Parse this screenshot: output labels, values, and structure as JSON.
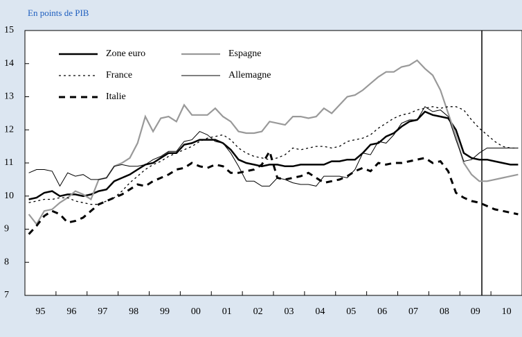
{
  "chart_data": {
    "type": "line",
    "subtitle": "En points de PIB",
    "categories": [
      "95",
      null,
      null,
      null,
      "96",
      null,
      null,
      null,
      "97",
      null,
      null,
      null,
      "98",
      null,
      null,
      null,
      "99",
      null,
      null,
      null,
      "00",
      null,
      null,
      null,
      "01",
      null,
      null,
      null,
      "02",
      null,
      null,
      null,
      "03",
      null,
      null,
      null,
      "04",
      null,
      null,
      null,
      "05",
      null,
      null,
      null,
      "06",
      null,
      null,
      null,
      "07",
      null,
      null,
      null,
      "08",
      null,
      null,
      null,
      "09",
      null,
      null,
      null,
      "10",
      null,
      null,
      null
    ],
    "series": [
      {
        "name": "Zone euro",
        "color": "#000000",
        "style": "solid",
        "width": 2.5,
        "values": [
          9.9,
          9.95,
          10.1,
          10.15,
          10.0,
          10.05,
          10.05,
          10.0,
          10.05,
          10.15,
          10.2,
          10.45,
          10.55,
          10.65,
          10.8,
          10.95,
          11.0,
          11.15,
          11.3,
          11.3,
          11.55,
          11.6,
          11.7,
          11.7,
          11.7,
          11.6,
          11.4,
          11.1,
          11.0,
          10.95,
          10.9,
          10.95,
          10.95,
          10.9,
          10.9,
          10.95,
          10.95,
          10.95,
          10.95,
          11.05,
          11.05,
          11.1,
          11.1,
          11.3,
          11.55,
          11.6,
          11.8,
          11.9,
          12.1,
          12.25,
          12.3,
          12.55,
          12.45,
          12.4,
          12.35,
          12.0,
          11.3,
          11.15,
          11.1,
          11.1,
          11.05,
          11.0,
          10.95,
          10.95
        ]
      },
      {
        "name": "Espagne",
        "color": "#999999",
        "style": "solid",
        "width": 2.2,
        "values": [
          9.45,
          9.15,
          9.55,
          9.6,
          9.8,
          9.95,
          10.15,
          10.05,
          9.9,
          10.5,
          10.55,
          10.9,
          11.0,
          11.15,
          11.6,
          12.4,
          11.95,
          12.35,
          12.4,
          12.25,
          12.75,
          12.45,
          12.45,
          12.45,
          12.65,
          12.4,
          12.25,
          11.95,
          11.9,
          11.9,
          11.95,
          12.25,
          12.2,
          12.15,
          12.4,
          12.4,
          12.35,
          12.4,
          12.65,
          12.5,
          12.75,
          13.0,
          13.05,
          13.2,
          13.4,
          13.6,
          13.75,
          13.75,
          13.9,
          13.95,
          14.1,
          13.85,
          13.65,
          13.2,
          12.5,
          11.8,
          11.0,
          10.65,
          10.45,
          10.45,
          10.5,
          10.55,
          10.6,
          10.65
        ]
      },
      {
        "name": "France",
        "color": "#000000",
        "style": "dotted",
        "width": 1.3,
        "values": [
          9.8,
          9.85,
          9.9,
          9.9,
          9.95,
          9.95,
          9.85,
          9.8,
          9.75,
          9.75,
          9.85,
          9.95,
          10.15,
          10.4,
          10.6,
          10.8,
          10.95,
          11.05,
          11.2,
          11.3,
          11.4,
          11.5,
          11.65,
          11.75,
          11.8,
          11.85,
          11.7,
          11.45,
          11.3,
          11.2,
          11.15,
          11.1,
          11.15,
          11.25,
          11.45,
          11.4,
          11.45,
          11.5,
          11.5,
          11.45,
          11.5,
          11.65,
          11.7,
          11.75,
          11.85,
          12.05,
          12.2,
          12.35,
          12.45,
          12.5,
          12.6,
          12.65,
          12.7,
          12.65,
          12.7,
          12.7,
          12.6,
          12.3,
          12.05,
          11.85,
          11.65,
          11.5,
          11.45,
          11.45
        ]
      },
      {
        "name": "Allemagne",
        "color": "#000000",
        "style": "solid",
        "width": 1,
        "values": [
          10.7,
          10.8,
          10.8,
          10.75,
          10.3,
          10.7,
          10.6,
          10.65,
          10.5,
          10.5,
          10.55,
          10.9,
          10.95,
          10.9,
          10.9,
          10.95,
          11.1,
          11.2,
          11.35,
          11.35,
          11.65,
          11.7,
          11.95,
          11.85,
          11.65,
          11.6,
          11.3,
          10.9,
          10.45,
          10.45,
          10.3,
          10.3,
          10.55,
          10.5,
          10.4,
          10.35,
          10.35,
          10.3,
          10.6,
          10.6,
          10.6,
          10.55,
          10.8,
          11.3,
          11.25,
          11.65,
          11.6,
          11.85,
          12.2,
          12.3,
          12.3,
          12.7,
          12.55,
          12.6,
          12.4,
          11.7,
          11.05,
          11.1,
          11.3,
          11.45,
          11.45,
          11.45,
          11.45,
          11.45
        ]
      },
      {
        "name": "Italie",
        "color": "#000000",
        "style": "dashed",
        "width": 3,
        "values": [
          8.85,
          9.1,
          9.4,
          9.55,
          9.45,
          9.2,
          9.25,
          9.35,
          9.55,
          9.75,
          9.85,
          9.95,
          10.05,
          10.2,
          10.35,
          10.3,
          10.45,
          10.55,
          10.65,
          10.8,
          10.85,
          11.0,
          10.9,
          10.85,
          10.95,
          10.9,
          10.7,
          10.7,
          10.75,
          10.8,
          10.95,
          11.35,
          10.55,
          10.5,
          10.55,
          10.6,
          10.7,
          10.55,
          10.4,
          10.45,
          10.5,
          10.6,
          10.75,
          10.85,
          10.75,
          11.0,
          10.95,
          11.0,
          11.0,
          11.05,
          11.1,
          11.15,
          11.0,
          11.05,
          10.75,
          10.1,
          9.95,
          9.85,
          9.8,
          9.7,
          9.6,
          9.55,
          9.5,
          9.45
        ]
      }
    ],
    "ylim": [
      7,
      15
    ],
    "yticks": [
      7,
      8,
      9,
      10,
      11,
      12,
      13,
      14,
      15
    ]
  }
}
